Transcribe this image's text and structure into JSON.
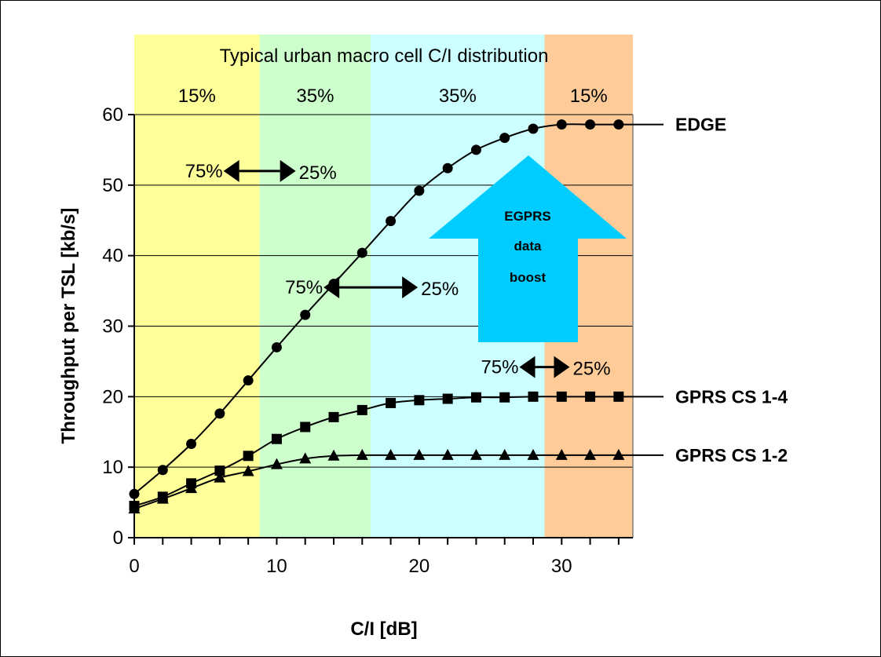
{
  "chart_data": {
    "type": "line",
    "title": "Typical urban macro cell C/I distribution",
    "xlabel": "C/I [dB]",
    "ylabel": "Throughput per TSL [kb/s]",
    "xlim": [
      0,
      35
    ],
    "ylim": [
      0,
      60
    ],
    "x_ticks": [
      0,
      10,
      20,
      30
    ],
    "y_ticks": [
      0,
      10,
      20,
      30,
      40,
      50,
      60
    ],
    "grid": "horizontal",
    "bands": [
      {
        "from": 0,
        "to": 8.8,
        "label": "15%",
        "color": "#ffff99"
      },
      {
        "from": 8.8,
        "to": 16.6,
        "label": "35%",
        "color": "#ccffcc"
      },
      {
        "from": 16.6,
        "to": 28.8,
        "label": "35%",
        "color": "#ccffff"
      },
      {
        "from": 28.8,
        "to": 35,
        "label": "15%",
        "color": "#ffcc99"
      }
    ],
    "x": [
      0,
      2,
      4,
      6,
      8,
      10,
      12,
      14,
      16,
      18,
      20,
      22,
      24,
      26,
      28,
      30,
      32,
      34
    ],
    "series": [
      {
        "name": "EDGE",
        "marker": "circle",
        "values": [
          6.2,
          9.6,
          13.3,
          17.6,
          22.3,
          27.0,
          31.6,
          36.0,
          40.4,
          44.9,
          49.2,
          52.4,
          55.0,
          56.7,
          58.0,
          58.6,
          58.6,
          58.6
        ]
      },
      {
        "name": "GPRS CS 1-4",
        "marker": "square",
        "values": [
          4.5,
          5.8,
          7.7,
          9.5,
          11.6,
          14.0,
          15.7,
          17.1,
          18.1,
          19.1,
          19.5,
          19.7,
          19.9,
          19.9,
          20.0,
          20.0,
          20.0,
          20.0
        ]
      },
      {
        "name": "GPRS CS 1-2",
        "marker": "triangle",
        "values": [
          4.1,
          5.5,
          7.0,
          8.5,
          9.4,
          10.4,
          11.2,
          11.6,
          11.7,
          11.7,
          11.7,
          11.7,
          11.7,
          11.7,
          11.7,
          11.7,
          11.7,
          11.7
        ]
      }
    ],
    "annotations": [
      {
        "left_text": "75%",
        "right_text": "25%",
        "x": 8.8,
        "y": 52
      },
      {
        "left_text": "75%",
        "right_text": "25%",
        "x": 16.6,
        "y": 35.5
      },
      {
        "left_text": "75%",
        "right_text": "25%",
        "x": 28.8,
        "y": 24.2
      }
    ],
    "callout": {
      "lines": [
        "EGPRS",
        "data",
        "boost"
      ],
      "color": "#00ccff"
    }
  }
}
